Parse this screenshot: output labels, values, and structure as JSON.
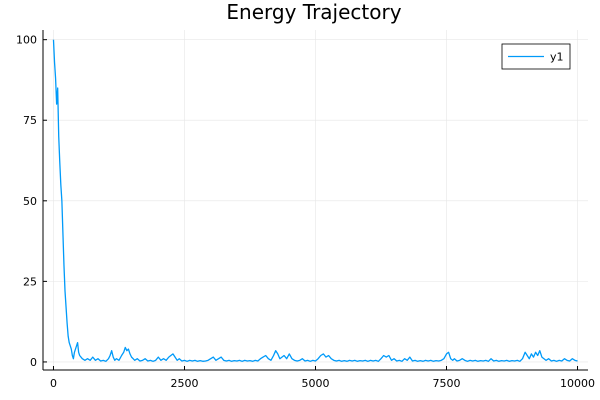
{
  "chart_data": {
    "type": "line",
    "title": "Energy Trajectory",
    "xlabel": "",
    "ylabel": "",
    "xlim": [
      -200,
      10200
    ],
    "ylim": [
      -2.5,
      103
    ],
    "x_ticks": [
      0,
      2500,
      5000,
      7500,
      10000
    ],
    "y_ticks": [
      0,
      25,
      50,
      75,
      100
    ],
    "x_tick_labels": [
      "0",
      "2500",
      "5000",
      "7500",
      "10000"
    ],
    "y_tick_labels": [
      "0",
      "25",
      "50",
      "75",
      "100"
    ],
    "grid": true,
    "legend_position": "top-right",
    "series": [
      {
        "name": "y1",
        "color": "#009af9",
        "points": [
          [
            0,
            100
          ],
          [
            20,
            93
          ],
          [
            40,
            88
          ],
          [
            60,
            80
          ],
          [
            80,
            85
          ],
          [
            100,
            70
          ],
          [
            120,
            62
          ],
          [
            140,
            55
          ],
          [
            160,
            50
          ],
          [
            180,
            40
          ],
          [
            200,
            30
          ],
          [
            220,
            22
          ],
          [
            240,
            17
          ],
          [
            260,
            12
          ],
          [
            280,
            8
          ],
          [
            300,
            6
          ],
          [
            320,
            5
          ],
          [
            340,
            4
          ],
          [
            360,
            2
          ],
          [
            380,
            1
          ],
          [
            400,
            3
          ],
          [
            420,
            4
          ],
          [
            440,
            5
          ],
          [
            460,
            6
          ],
          [
            480,
            3
          ],
          [
            500,
            2
          ],
          [
            550,
            1
          ],
          [
            600,
            0.5
          ],
          [
            650,
            1
          ],
          [
            700,
            0.5
          ],
          [
            750,
            1.5
          ],
          [
            800,
            0.5
          ],
          [
            850,
            1
          ],
          [
            900,
            0.3
          ],
          [
            950,
            0.5
          ],
          [
            1000,
            0.2
          ],
          [
            1050,
            1
          ],
          [
            1080,
            2
          ],
          [
            1110,
            3.5
          ],
          [
            1140,
            1.5
          ],
          [
            1170,
            0.5
          ],
          [
            1200,
            1
          ],
          [
            1250,
            0.5
          ],
          [
            1300,
            2
          ],
          [
            1340,
            3
          ],
          [
            1370,
            4.5
          ],
          [
            1400,
            3.5
          ],
          [
            1430,
            4
          ],
          [
            1460,
            2.5
          ],
          [
            1490,
            1.5
          ],
          [
            1520,
            1
          ],
          [
            1550,
            0.5
          ],
          [
            1600,
            1
          ],
          [
            1650,
            0.3
          ],
          [
            1700,
            0.5
          ],
          [
            1750,
            1
          ],
          [
            1800,
            0.3
          ],
          [
            1850,
            0.5
          ],
          [
            1900,
            0.2
          ],
          [
            1950,
            0.5
          ],
          [
            2000,
            1.5
          ],
          [
            2050,
            0.5
          ],
          [
            2100,
            1
          ],
          [
            2150,
            0.5
          ],
          [
            2200,
            1.5
          ],
          [
            2240,
            2
          ],
          [
            2280,
            2.5
          ],
          [
            2320,
            1.5
          ],
          [
            2360,
            0.5
          ],
          [
            2400,
            1
          ],
          [
            2450,
            0.3
          ],
          [
            2500,
            0.5
          ],
          [
            2550,
            0.2
          ],
          [
            2600,
            0.5
          ],
          [
            2650,
            0.3
          ],
          [
            2700,
            0.5
          ],
          [
            2750,
            0.2
          ],
          [
            2800,
            0.4
          ],
          [
            2850,
            0.2
          ],
          [
            2900,
            0.3
          ],
          [
            2950,
            0.5
          ],
          [
            3000,
            1
          ],
          [
            3050,
            1.5
          ],
          [
            3100,
            0.5
          ],
          [
            3150,
            1
          ],
          [
            3200,
            1.5
          ],
          [
            3250,
            0.5
          ],
          [
            3300,
            0.3
          ],
          [
            3350,
            0.5
          ],
          [
            3400,
            0.2
          ],
          [
            3450,
            0.4
          ],
          [
            3500,
            0.3
          ],
          [
            3550,
            0.5
          ],
          [
            3600,
            0.2
          ],
          [
            3650,
            0.5
          ],
          [
            3700,
            0.3
          ],
          [
            3750,
            0.4
          ],
          [
            3800,
            0.2
          ],
          [
            3850,
            0.5
          ],
          [
            3900,
            0.3
          ],
          [
            3950,
            1
          ],
          [
            4000,
            1.5
          ],
          [
            4050,
            2
          ],
          [
            4100,
            1
          ],
          [
            4150,
            0.5
          ],
          [
            4200,
            2
          ],
          [
            4240,
            3.5
          ],
          [
            4280,
            2.5
          ],
          [
            4320,
            1
          ],
          [
            4360,
            1.5
          ],
          [
            4400,
            2
          ],
          [
            4450,
            1
          ],
          [
            4500,
            2.5
          ],
          [
            4550,
            1
          ],
          [
            4600,
            0.5
          ],
          [
            4650,
            0.3
          ],
          [
            4700,
            0.5
          ],
          [
            4750,
            1
          ],
          [
            4800,
            0.3
          ],
          [
            4850,
            0.5
          ],
          [
            4900,
            0.2
          ],
          [
            4950,
            0.5
          ],
          [
            5000,
            0.3
          ],
          [
            5050,
            1
          ],
          [
            5100,
            2
          ],
          [
            5150,
            2.5
          ],
          [
            5200,
            1.5
          ],
          [
            5250,
            2
          ],
          [
            5300,
            1
          ],
          [
            5350,
            0.5
          ],
          [
            5400,
            0.3
          ],
          [
            5450,
            0.5
          ],
          [
            5500,
            0.2
          ],
          [
            5550,
            0.4
          ],
          [
            5600,
            0.2
          ],
          [
            5650,
            0.5
          ],
          [
            5700,
            0.3
          ],
          [
            5750,
            0.5
          ],
          [
            5800,
            0.2
          ],
          [
            5850,
            0.4
          ],
          [
            5900,
            0.3
          ],
          [
            5950,
            0.5
          ],
          [
            6000,
            0.2
          ],
          [
            6050,
            0.5
          ],
          [
            6100,
            0.3
          ],
          [
            6150,
            0.5
          ],
          [
            6200,
            0.2
          ],
          [
            6250,
            1
          ],
          [
            6300,
            2
          ],
          [
            6350,
            1.5
          ],
          [
            6400,
            2
          ],
          [
            6450,
            0.5
          ],
          [
            6500,
            1
          ],
          [
            6550,
            0.3
          ],
          [
            6600,
            0.5
          ],
          [
            6650,
            0.2
          ],
          [
            6700,
            1
          ],
          [
            6750,
            0.5
          ],
          [
            6800,
            1.5
          ],
          [
            6850,
            0.3
          ],
          [
            6900,
            0.5
          ],
          [
            6950,
            0.2
          ],
          [
            7000,
            0.4
          ],
          [
            7050,
            0.2
          ],
          [
            7100,
            0.5
          ],
          [
            7150,
            0.3
          ],
          [
            7200,
            0.5
          ],
          [
            7250,
            0.2
          ],
          [
            7300,
            0.4
          ],
          [
            7350,
            0.3
          ],
          [
            7400,
            0.5
          ],
          [
            7450,
            1
          ],
          [
            7500,
            2.5
          ],
          [
            7540,
            3
          ],
          [
            7580,
            1
          ],
          [
            7620,
            0.5
          ],
          [
            7650,
            1
          ],
          [
            7700,
            0.3
          ],
          [
            7750,
            0.5
          ],
          [
            7800,
            1
          ],
          [
            7850,
            0.5
          ],
          [
            7900,
            0.2
          ],
          [
            7950,
            0.5
          ],
          [
            8000,
            0.3
          ],
          [
            8050,
            0.5
          ],
          [
            8100,
            0.2
          ],
          [
            8150,
            0.4
          ],
          [
            8200,
            0.3
          ],
          [
            8250,
            0.5
          ],
          [
            8300,
            0.2
          ],
          [
            8350,
            1
          ],
          [
            8400,
            0.3
          ],
          [
            8450,
            0.5
          ],
          [
            8500,
            0.2
          ],
          [
            8550,
            0.4
          ],
          [
            8600,
            0.3
          ],
          [
            8650,
            0.5
          ],
          [
            8700,
            0.2
          ],
          [
            8750,
            0.4
          ],
          [
            8800,
            0.3
          ],
          [
            8850,
            0.5
          ],
          [
            8900,
            0.2
          ],
          [
            8950,
            1
          ],
          [
            9000,
            3
          ],
          [
            9040,
            2
          ],
          [
            9080,
            1
          ],
          [
            9120,
            2.5
          ],
          [
            9160,
            1.5
          ],
          [
            9200,
            3
          ],
          [
            9240,
            2
          ],
          [
            9280,
            3.5
          ],
          [
            9320,
            1.5
          ],
          [
            9360,
            1
          ],
          [
            9400,
            0.5
          ],
          [
            9450,
            1
          ],
          [
            9500,
            0.3
          ],
          [
            9550,
            0.5
          ],
          [
            9600,
            0.2
          ],
          [
            9650,
            0.5
          ],
          [
            9700,
            0.3
          ],
          [
            9750,
            1
          ],
          [
            9800,
            0.5
          ],
          [
            9850,
            0.3
          ],
          [
            9900,
            1
          ],
          [
            9950,
            0.5
          ],
          [
            10000,
            0.3
          ]
        ]
      }
    ]
  }
}
